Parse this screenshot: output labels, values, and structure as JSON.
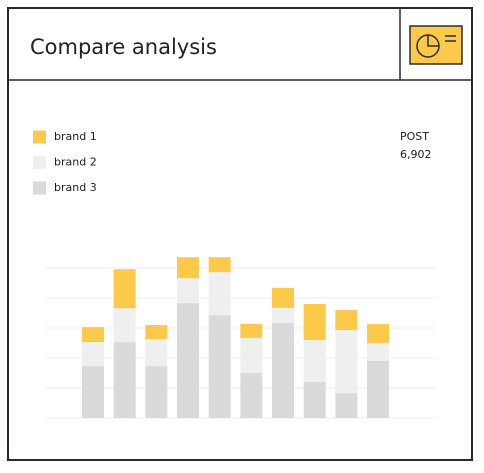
{
  "chart_data": {
    "type": "stacked_bar",
    "title": "Compare analysis",
    "stat": {
      "label": "POST",
      "value": "6,902"
    },
    "categories": [
      null,
      null,
      null,
      null,
      null,
      null,
      null,
      null,
      null,
      null
    ],
    "series": [
      {
        "name": "brand 3",
        "color": "#dadada",
        "values": [
          1.73,
          2.53,
          1.73,
          3.83,
          3.43,
          1.5,
          3.17,
          1.2,
          0.83,
          1.9
        ]
      },
      {
        "name": "brand 2",
        "color": "#efefef",
        "values": [
          0.8,
          1.13,
          0.9,
          0.83,
          1.43,
          1.17,
          0.5,
          1.4,
          2.1,
          0.6
        ]
      },
      {
        "name": "brand 1",
        "color": "#fdc94a",
        "values": [
          0.5,
          1.3,
          0.47,
          0.7,
          0.5,
          0.47,
          0.67,
          1.2,
          0.67,
          0.63
        ]
      }
    ],
    "ylim": [
      0,
      5
    ],
    "yticks": [
      0,
      1,
      2,
      3,
      4,
      5
    ],
    "grid": true
  }
}
